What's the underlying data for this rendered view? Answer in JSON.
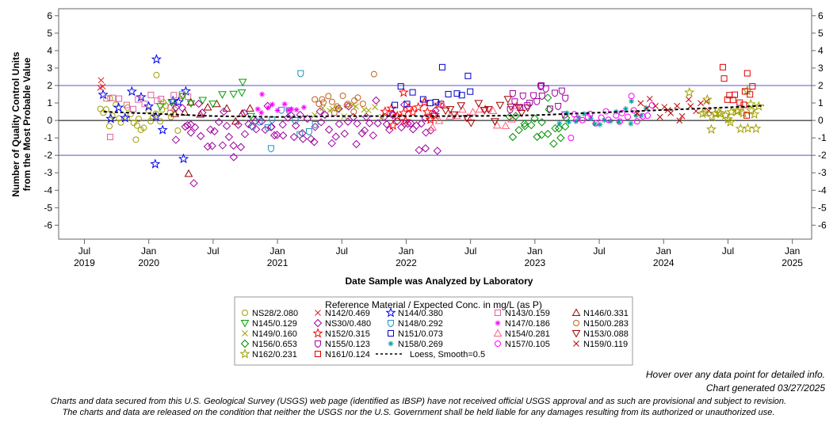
{
  "chart_data": {
    "type": "scatter",
    "ylabel_line1": "Number of Quality Control Units",
    "ylabel_line2": "from the Most Probable Value",
    "xlabel": "Date Sample was Analyzed by Laboratory",
    "ylim": [
      -6.8,
      6.4
    ],
    "yticks": [
      -6,
      -5,
      -4,
      -3,
      -2,
      -1,
      0,
      1,
      2,
      3,
      4,
      5,
      6
    ],
    "xlim": [
      2019.3,
      2025.15
    ],
    "xticks": [
      {
        "pos": 2019.5,
        "label": "Jul",
        "year": "2019"
      },
      {
        "pos": 2020.0,
        "label": "Jan",
        "year": "2020"
      },
      {
        "pos": 2020.5,
        "label": "Jul",
        "year": ""
      },
      {
        "pos": 2021.0,
        "label": "Jan",
        "year": "2021"
      },
      {
        "pos": 2021.5,
        "label": "Jul",
        "year": ""
      },
      {
        "pos": 2022.0,
        "label": "Jan",
        "year": "2022"
      },
      {
        "pos": 2022.5,
        "label": "Jul",
        "year": ""
      },
      {
        "pos": 2023.0,
        "label": "Jan",
        "year": "2023"
      },
      {
        "pos": 2023.5,
        "label": "Jul",
        "year": ""
      },
      {
        "pos": 2024.0,
        "label": "Jan",
        "year": "2024"
      },
      {
        "pos": 2024.5,
        "label": "Jul",
        "year": ""
      },
      {
        "pos": 2025.0,
        "label": "Jan",
        "year": "2025"
      }
    ],
    "reference_lines": [
      {
        "y": 2,
        "color": "#5555cc"
      },
      {
        "y": 0,
        "color": "#000000"
      },
      {
        "y": -2,
        "color": "#5555cc"
      }
    ],
    "legend_title": "Reference Material / Expected Conc. in mg/L (as P)",
    "series": [
      {
        "name": "NS28/2.080",
        "marker": "circle",
        "color": "#a0a000",
        "start": 2019.62,
        "end": 2020.25,
        "n": 30,
        "mean": 0.2,
        "spread": 0.8,
        "extra": [
          [
            2020.06,
            2.6
          ],
          [
            2019.9,
            -1.1
          ]
        ]
      },
      {
        "name": "N142/0.469",
        "marker": "x",
        "color": "#e02020",
        "start": 2019.62,
        "end": 2019.65,
        "n": 2,
        "mean": 2.0,
        "spread": 0.3,
        "extra": [
          [
            2019.63,
            2.3
          ]
        ]
      },
      {
        "name": "N144/0.380",
        "marker": "star",
        "color": "#0000ee",
        "start": 2019.64,
        "end": 2020.3,
        "n": 12,
        "mean": 0.8,
        "spread": 0.9,
        "extra": [
          [
            2020.06,
            3.5
          ],
          [
            2020.05,
            -2.5
          ],
          [
            2020.27,
            -2.2
          ]
        ]
      },
      {
        "name": "N143/0.159",
        "marker": "square",
        "color": "#e060a0",
        "start": 2019.68,
        "end": 2020.3,
        "n": 14,
        "mean": 1.1,
        "spread": 0.4,
        "extra": [
          [
            2019.7,
            -0.95
          ]
        ]
      },
      {
        "name": "N146/0.331",
        "marker": "triangle",
        "color": "#990000",
        "start": 2020.2,
        "end": 2020.8,
        "n": 10,
        "mean": 0.5,
        "spread": 0.4,
        "extra": [
          [
            2020.31,
            -3.05
          ]
        ]
      },
      {
        "name": "N145/0.129",
        "marker": "tridown",
        "color": "#00a000",
        "start": 2020.1,
        "end": 2020.8,
        "n": 10,
        "mean": 1.2,
        "spread": 0.7,
        "extra": [
          [
            2020.73,
            2.2
          ]
        ]
      },
      {
        "name": "NS30/0.480",
        "marker": "diamond",
        "color": "#a000a0",
        "start": 2020.2,
        "end": 2022.25,
        "n": 90,
        "mean": -0.3,
        "spread": 0.9,
        "extra": [
          [
            2020.35,
            -3.6
          ],
          [
            2020.66,
            -2.1
          ],
          [
            2022.1,
            -1.7
          ],
          [
            2022.15,
            -1.6
          ]
        ]
      },
      {
        "name": "N148/0.292",
        "marker": "shield",
        "color": "#2090c0",
        "start": 2020.8,
        "end": 2021.3,
        "n": 10,
        "mean": -0.2,
        "spread": 0.9,
        "extra": [
          [
            2021.18,
            2.7
          ],
          [
            2020.95,
            -1.6
          ]
        ]
      },
      {
        "name": "N147/0.186",
        "marker": "asterisk",
        "color": "#ff00ff",
        "start": 2020.85,
        "end": 2021.2,
        "n": 10,
        "mean": 0.8,
        "spread": 0.5,
        "extra": [
          [
            2020.88,
            1.5
          ]
        ]
      },
      {
        "name": "N150/0.283",
        "marker": "circle",
        "color": "#c06020",
        "start": 2021.3,
        "end": 2021.65,
        "n": 16,
        "mean": 1.1,
        "spread": 0.4,
        "extra": [
          [
            2021.75,
            2.65
          ]
        ]
      },
      {
        "name": "N149/0.160",
        "marker": "x",
        "color": "#a0a000",
        "start": 2021.3,
        "end": 2021.8,
        "n": 12,
        "mean": 0.6,
        "spread": 0.4,
        "extra": []
      },
      {
        "name": "N152/0.315",
        "marker": "star",
        "color": "#ff0000",
        "start": 2021.85,
        "end": 2022.25,
        "n": 14,
        "mean": 0.4,
        "spread": 0.5,
        "extra": [
          [
            2021.98,
            1.6
          ]
        ]
      },
      {
        "name": "N151/0.073",
        "marker": "square",
        "color": "#0000cc",
        "start": 2021.9,
        "end": 2022.5,
        "n": 12,
        "mean": 1.2,
        "spread": 0.7,
        "extra": [
          [
            2022.28,
            3.05
          ],
          [
            2022.48,
            2.55
          ]
        ]
      },
      {
        "name": "N154/0.281",
        "marker": "triangle",
        "color": "#ff6080",
        "start": 2022.2,
        "end": 2022.9,
        "n": 16,
        "mean": 0.3,
        "spread": 0.6,
        "extra": []
      },
      {
        "name": "N153/0.088",
        "marker": "tridown",
        "color": "#a00000",
        "start": 2022.3,
        "end": 2022.95,
        "n": 16,
        "mean": 0.6,
        "spread": 0.6,
        "extra": []
      },
      {
        "name": "N156/0.653",
        "marker": "diamond",
        "color": "#009000",
        "start": 2022.8,
        "end": 2023.25,
        "n": 18,
        "mean": -0.3,
        "spread": 0.6,
        "extra": [
          [
            2023.1,
            1.3
          ],
          [
            2023.2,
            -1.0
          ]
        ]
      },
      {
        "name": "N155/0.123",
        "marker": "shield",
        "color": "#a000a0",
        "start": 2022.8,
        "end": 2023.25,
        "n": 18,
        "mean": 1.3,
        "spread": 0.6,
        "extra": [
          [
            2023.05,
            2.0
          ]
        ]
      },
      {
        "name": "N158/0.269",
        "marker": "asterisk",
        "color": "#00a0a0",
        "start": 2023.2,
        "end": 2023.85,
        "n": 18,
        "mean": 0.2,
        "spread": 0.4,
        "extra": [
          [
            2023.75,
            1.1
          ]
        ]
      },
      {
        "name": "N157/0.105",
        "marker": "circle",
        "color": "#ff00ff",
        "start": 2023.3,
        "end": 2023.9,
        "n": 18,
        "mean": 0.3,
        "spread": 0.5,
        "extra": [
          [
            2023.28,
            -1.0
          ],
          [
            2023.75,
            1.4
          ]
        ]
      },
      {
        "name": "N159/0.119",
        "marker": "x",
        "color": "#c00000",
        "start": 2023.8,
        "end": 2024.35,
        "n": 18,
        "mean": 0.6,
        "spread": 0.5,
        "extra": []
      },
      {
        "name": "N162/0.231",
        "marker": "star",
        "color": "#a0a000",
        "start": 2024.3,
        "end": 2024.75,
        "n": 22,
        "mean": 0.4,
        "spread": 0.6,
        "extra": [
          [
            2024.2,
            1.6
          ],
          [
            2024.65,
            1.7
          ]
        ]
      },
      {
        "name": "N161/0.124",
        "marker": "square",
        "color": "#e00000",
        "start": 2024.5,
        "end": 2024.7,
        "n": 10,
        "mean": 1.3,
        "spread": 0.7,
        "extra": [
          [
            2024.46,
            3.05
          ],
          [
            2024.47,
            2.4
          ],
          [
            2024.65,
            2.7
          ]
        ]
      }
    ],
    "loess": {
      "name": "Loess, Smooth=0.5",
      "x": [
        2019.65,
        2020.0,
        2020.5,
        2021.0,
        2021.5,
        2022.0,
        2022.5,
        2023.0,
        2023.5,
        2024.0,
        2024.5,
        2024.78
      ],
      "y": [
        0.5,
        0.4,
        0.25,
        0.2,
        0.25,
        0.25,
        0.25,
        0.3,
        0.45,
        0.6,
        0.75,
        0.85
      ]
    }
  },
  "notes": {
    "hover": "Hover over any data point for detailed info.",
    "generated": "Chart generated 03/27/2025",
    "disclaimer1": "Charts and data secured from this U.S. Geological Survey (USGS) web page (identified as IBSP) have not received official USGS approval and as such are provisional and subject to revision.",
    "disclaimer2": "The charts and data are released on the condition that neither the USGS nor the U.S. Government shall be held liable for any damages resulting from its authorized or unauthorized use."
  }
}
